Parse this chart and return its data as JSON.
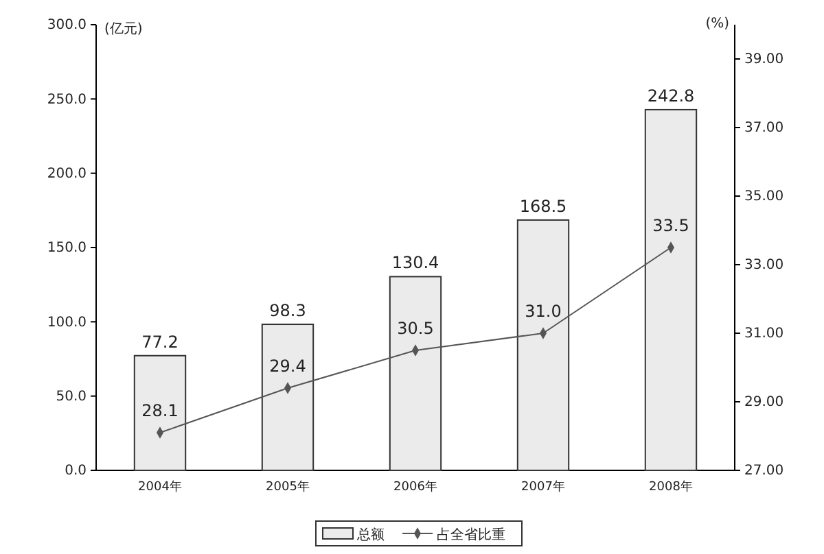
{
  "chart_data": {
    "type": "bar",
    "ylabel": "(亿元)",
    "y2label": "(%)",
    "categories": [
      "2004年",
      "2005年",
      "2006年",
      "2007年",
      "2008年"
    ],
    "series": [
      {
        "name": "总额",
        "color": "#ebebeb",
        "values": [
          77.2,
          98.3,
          130.4,
          168.5,
          242.8
        ]
      },
      {
        "name": "占全省比重",
        "type": "line",
        "axis": "y2",
        "color": "#555555",
        "values": [
          28.1,
          29.4,
          30.5,
          31.0,
          33.5
        ],
        "value_labels": [
          "28.1",
          "29.4",
          "30.5",
          "31.0",
          "33.5"
        ]
      }
    ],
    "ylim": [
      0,
      300
    ],
    "yticks": [
      {
        "value": 0,
        "label": "0.0"
      },
      {
        "value": 50,
        "label": "50.0"
      },
      {
        "value": 100,
        "label": "100.0"
      },
      {
        "value": 150,
        "label": "150.0"
      },
      {
        "value": 200,
        "label": "200.0"
      },
      {
        "value": 250,
        "label": "250.0"
      },
      {
        "value": 300,
        "label": "300.0"
      }
    ],
    "y2lim": [
      27,
      40
    ],
    "y2ticks": [
      {
        "value": 27,
        "label": "27.00"
      },
      {
        "value": 29,
        "label": "29.00"
      },
      {
        "value": 31,
        "label": "31.00"
      },
      {
        "value": 33,
        "label": "33.00"
      },
      {
        "value": 35,
        "label": "35.00"
      },
      {
        "value": 37,
        "label": "37.00"
      },
      {
        "value": 39,
        "label": "39.00"
      }
    ],
    "data_labels": true,
    "legend": "bottom",
    "marker": "diamond",
    "line_style": "solid",
    "grid": false
  }
}
